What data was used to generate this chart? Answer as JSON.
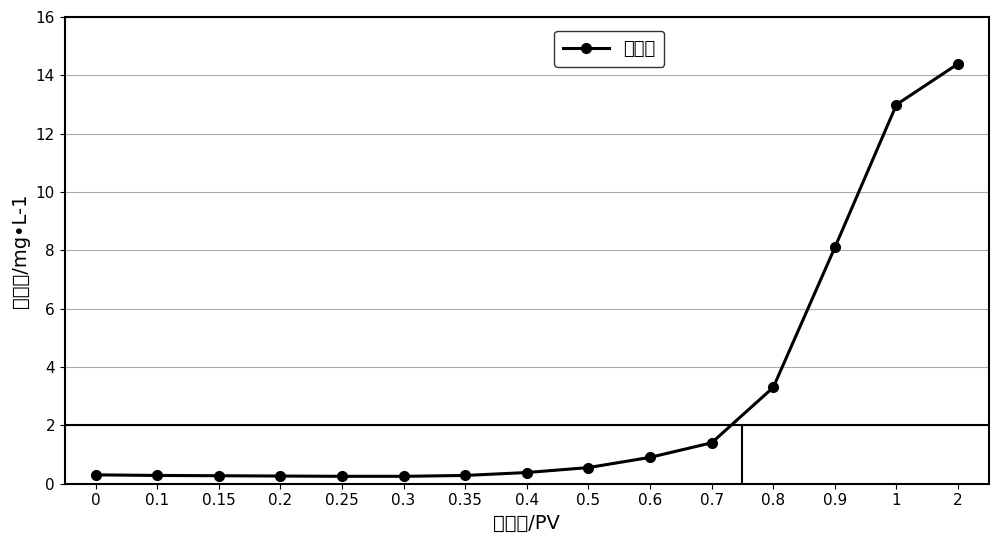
{
  "x_indices": [
    0,
    1,
    2,
    3,
    4,
    5,
    6,
    7,
    8,
    9,
    10,
    11,
    12,
    13,
    14
  ],
  "y": [
    0.3,
    0.28,
    0.27,
    0.26,
    0.25,
    0.25,
    0.28,
    0.38,
    0.55,
    0.9,
    1.4,
    3.3,
    8.1,
    13.0,
    14.4
  ],
  "xtick_labels": [
    "0",
    "0.1",
    "0.15",
    "0.2",
    "0.25",
    "0.3",
    "0.35",
    "0.4",
    "0.5",
    "0.6",
    "0.7",
    "0.8",
    "0.9",
    "1",
    "2"
  ],
  "ytick_labels": [
    "0",
    "2",
    "4",
    "6",
    "8",
    "10",
    "12",
    "14",
    "16"
  ],
  "ytick_positions": [
    0,
    2,
    4,
    6,
    8,
    10,
    12,
    14,
    16
  ],
  "ylim": [
    0,
    16
  ],
  "xlabel": "注入量/PV",
  "ylabel": "出沙量/mg•L-1",
  "legend_label": "出沙量",
  "hline_y": 2.0,
  "vline_x_index": 10.5,
  "line_color": "#000000",
  "marker": "o",
  "marker_size": 7,
  "line_width": 2.2,
  "bg_color": "#ffffff",
  "grid_color": "#aaaaaa",
  "xlabel_fontsize": 14,
  "ylabel_fontsize": 14,
  "legend_fontsize": 13,
  "tick_fontsize": 11
}
